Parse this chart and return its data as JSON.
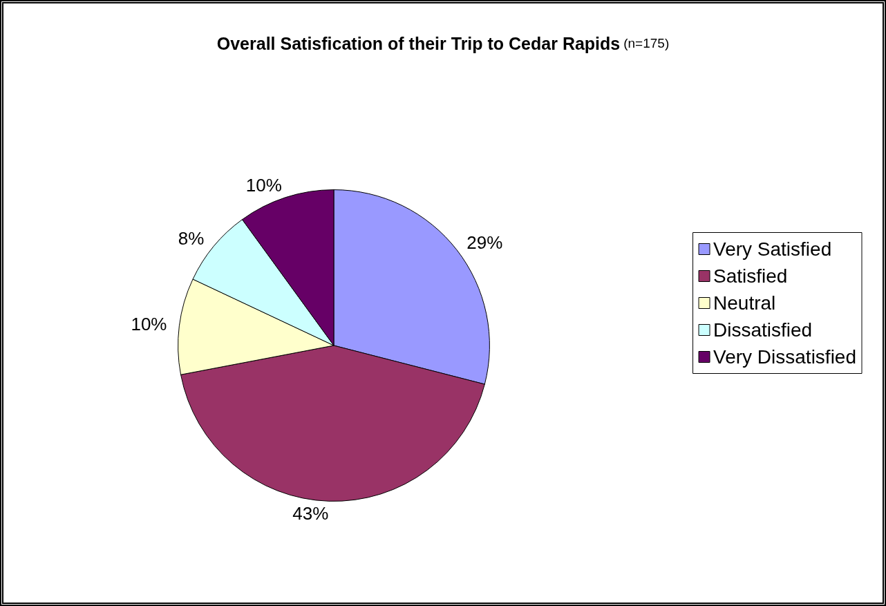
{
  "chart_data": {
    "type": "pie",
    "title": "Overall Satisfication of their Trip to Cedar Rapids",
    "subtitle": "(n=175)",
    "categories": [
      "Very Satisfied",
      "Satisfied",
      "Neutral",
      "Dissatisfied",
      "Very Dissatisfied"
    ],
    "values": [
      29,
      43,
      10,
      8,
      10
    ],
    "colors": [
      "#9999ff",
      "#993366",
      "#ffffcc",
      "#ccffff",
      "#660066"
    ],
    "value_labels": [
      "29%",
      "43%",
      "10%",
      "8%",
      "10%"
    ],
    "legend": "right"
  }
}
